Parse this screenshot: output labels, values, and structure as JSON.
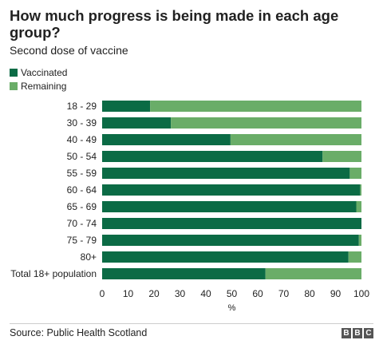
{
  "header": {
    "title": "How much progress is being made in each age group?",
    "subtitle": "Second dose of vaccine"
  },
  "colors": {
    "vaccinated": "#0b6b45",
    "remaining": "#6aad68"
  },
  "legend": {
    "vaccinated_label": "Vaccinated",
    "remaining_label": "Remaining"
  },
  "chart_data": {
    "type": "bar",
    "orientation": "horizontal",
    "stacked": true,
    "categories": [
      "18 - 29",
      "30 - 39",
      "40 - 49",
      "50 - 54",
      "55 - 59",
      "60 - 64",
      "65 - 69",
      "70 - 74",
      "75 - 79",
      "80+",
      "Total 18+ population"
    ],
    "series": [
      {
        "name": "Vaccinated",
        "values": [
          18.5,
          26.5,
          49.5,
          85,
          95.5,
          99.5,
          98,
          100,
          99,
          95,
          63
        ]
      },
      {
        "name": "Remaining",
        "values": [
          81.5,
          73.5,
          50.5,
          15,
          4.5,
          0.5,
          2,
          0,
          1,
          5,
          37
        ]
      }
    ],
    "xlabel": "%",
    "xlim": [
      0,
      100
    ],
    "xticks": [
      "0",
      "10",
      "20",
      "30",
      "40",
      "50",
      "60",
      "70",
      "80",
      "90",
      "100"
    ],
    "grid": false,
    "legend_position": "top-left"
  },
  "footer": {
    "source": "Source: Public Health Scotland",
    "logo_letters": [
      "B",
      "B",
      "C"
    ]
  }
}
